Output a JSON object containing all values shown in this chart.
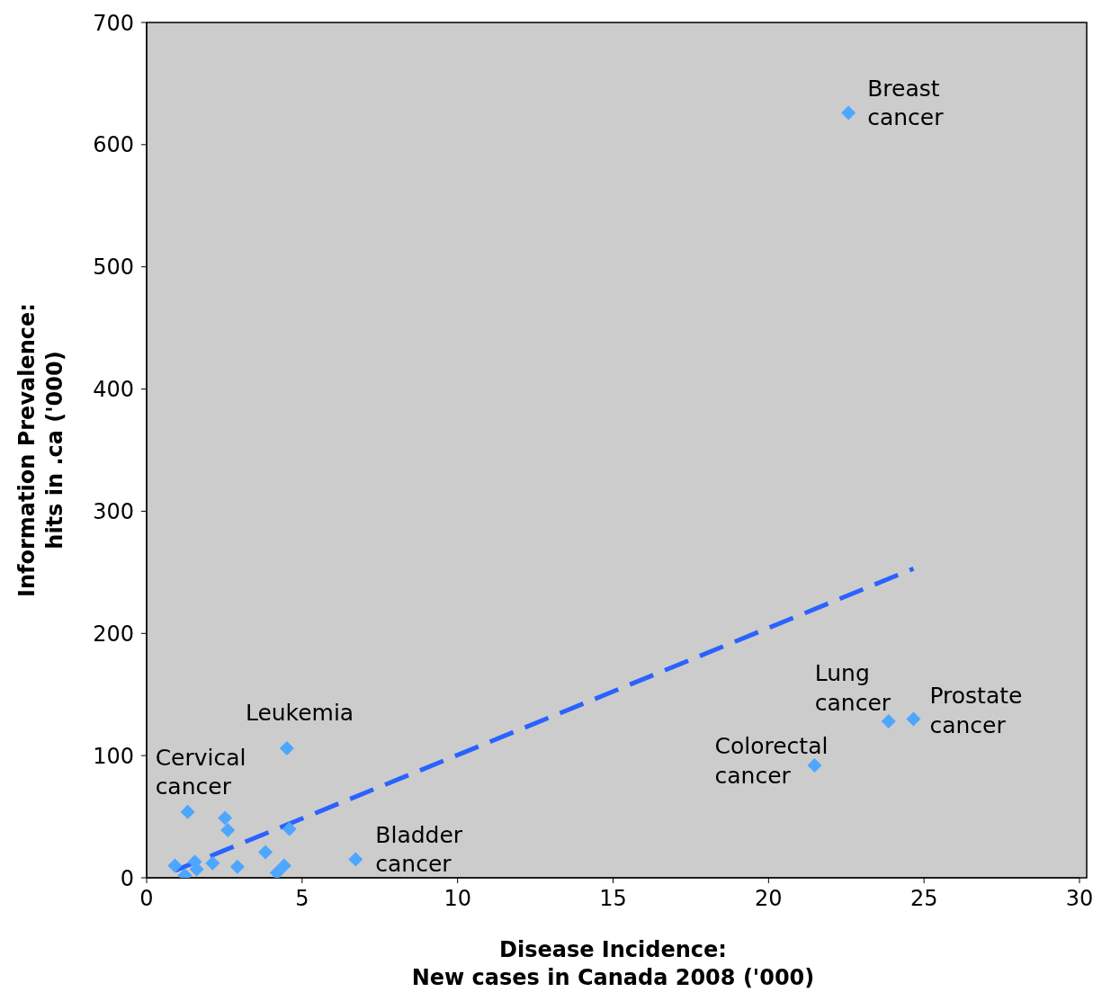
{
  "chart_data": {
    "type": "scatter",
    "xlabel": "Disease Incidence:\nNew cases in Canada 2008 ('000)",
    "ylabel": "Information Prevalence:\nhits in .ca ('000)",
    "xlim": [
      0,
      30
    ],
    "xticks": [
      0,
      5,
      10,
      15,
      20,
      25,
      30
    ],
    "ylim": [
      0,
      700
    ],
    "yticks": [
      0,
      100,
      200,
      300,
      400,
      500,
      600,
      700
    ],
    "grid": false,
    "legend": false,
    "series": [
      {
        "color": "#4da6ff",
        "marker": "diamond",
        "x": [
          22.57,
          23.86,
          24.66,
          21.48,
          4.51,
          1.32,
          2.52,
          2.61,
          4.59,
          3.82,
          0.91,
          1.23,
          1.55,
          1.61,
          2.12,
          2.92,
          4.19,
          4.42,
          6.72
        ],
        "values": [
          626,
          128,
          130,
          92,
          106,
          54,
          49,
          39,
          40,
          21,
          10,
          2,
          13,
          7,
          12,
          9,
          4,
          10,
          15
        ]
      },
      {
        "type": "line",
        "color": "#2962ff",
        "line_style": "dashed",
        "marker": "none",
        "x": [
          0.92,
          24.66
        ],
        "values": [
          6,
          253
        ]
      }
    ],
    "annotations": [
      {
        "text": "Breast\ncancer",
        "x": 22.57,
        "y": 626
      },
      {
        "text": "Lung\ncancer",
        "x": 23.86,
        "y": 128
      },
      {
        "text": "Prostate\ncancer",
        "x": 24.66,
        "y": 130
      },
      {
        "text": "Colorectal\ncancer",
        "x": 21.48,
        "y": 92
      },
      {
        "text": "Leukemia",
        "x": 4.51,
        "y": 106
      },
      {
        "text": "Cervical\ncancer",
        "x": 1.32,
        "y": 54
      },
      {
        "text": "Bladder\ncancer",
        "x": 6.72,
        "y": 15
      }
    ]
  }
}
